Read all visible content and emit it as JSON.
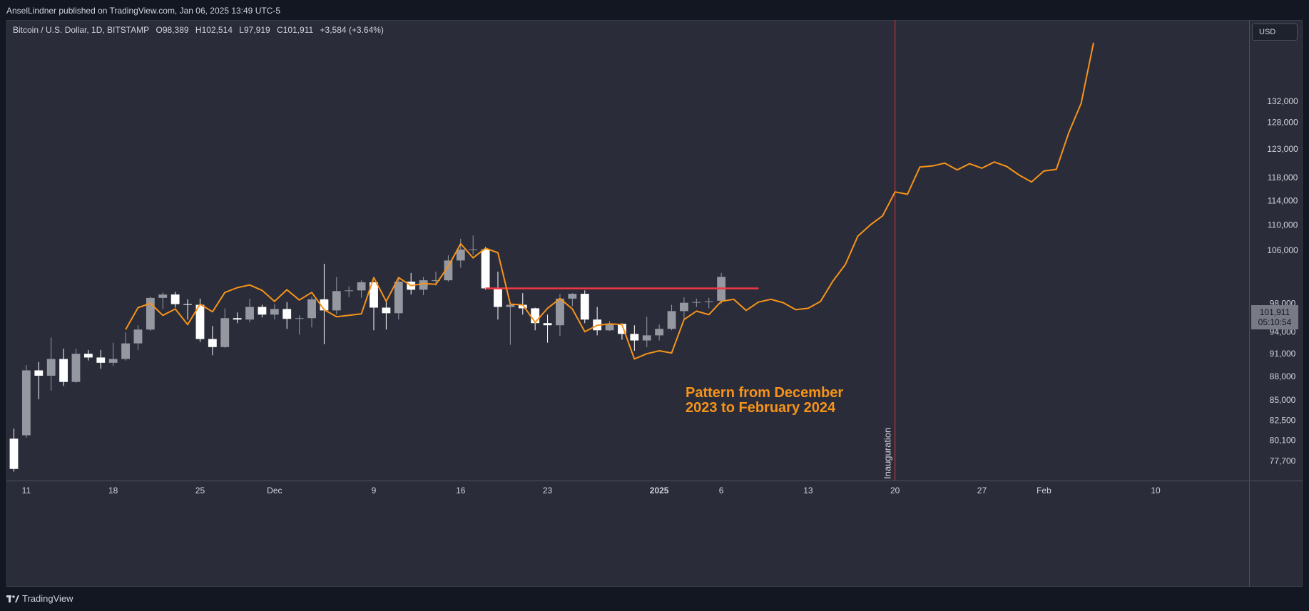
{
  "header": {
    "published": "AnselLindner published on TradingView.com, Jan 06, 2025 13:49 UTC-5"
  },
  "symbol": {
    "name": "Bitcoin / U.S. Dollar, 1D, BITSTAMP",
    "open": "O98,389",
    "high": "H102,514",
    "low": "L97,919",
    "close": "C101,911",
    "change": "+3,584 (+3.64%)"
  },
  "currency": "USD",
  "last_price": {
    "price": "101,911",
    "countdown": "05:10:54"
  },
  "annotation": {
    "line1": "Pattern from December",
    "line2": "2023 to February 2024",
    "event_label": "Inauguration"
  },
  "footer": {
    "brand": "TradingView"
  },
  "colors": {
    "background": "#2a2d39",
    "candle_up": "#9598a1",
    "candle_down": "#ffffff",
    "projection": "#f7931a",
    "resistance": "#f23645",
    "event_line": "#f23645"
  },
  "chart_data": {
    "type": "candlestick",
    "y_scale": "log",
    "ylim": [
      75500,
      146000
    ],
    "y_ticks": [
      77700,
      80100,
      82500,
      85000,
      88000,
      91000,
      94000,
      98000,
      106000,
      110000,
      114000,
      118000,
      123000,
      128000,
      132000
    ],
    "y_tick_labels": [
      "77,700",
      "80,100",
      "82,500",
      "85,000",
      "88,000",
      "91,000",
      "94,000",
      "98,000",
      "106,000",
      "110,000",
      "114,000",
      "118,000",
      "123,000",
      "128,000",
      "132,000"
    ],
    "x_ticks": [
      {
        "label": "11",
        "date": "2024-11-11"
      },
      {
        "label": "18",
        "date": "2024-11-18"
      },
      {
        "label": "25",
        "date": "2024-11-25"
      },
      {
        "label": "Dec",
        "date": "2024-12-01"
      },
      {
        "label": "9",
        "date": "2024-12-09"
      },
      {
        "label": "16",
        "date": "2024-12-16"
      },
      {
        "label": "23",
        "date": "2024-12-23"
      },
      {
        "label": "2025",
        "date": "2025-01-01",
        "bold": true
      },
      {
        "label": "6",
        "date": "2025-01-06"
      },
      {
        "label": "13",
        "date": "2025-01-13"
      },
      {
        "label": "20",
        "date": "2025-01-20"
      },
      {
        "label": "27",
        "date": "2025-01-27"
      },
      {
        "label": "Feb",
        "date": "2025-02-01"
      },
      {
        "label": "10",
        "date": "2025-02-10"
      }
    ],
    "x_range": [
      "2024-11-10",
      "2025-02-15"
    ],
    "candles": [
      {
        "date": "2024-11-10",
        "o": 80300,
        "h": 81500,
        "l": 76500,
        "c": 76800
      },
      {
        "date": "2024-11-11",
        "o": 80700,
        "h": 89500,
        "l": 80400,
        "c": 88800
      },
      {
        "date": "2024-11-12",
        "o": 88800,
        "h": 89900,
        "l": 85100,
        "c": 88100
      },
      {
        "date": "2024-11-13",
        "o": 88100,
        "h": 93200,
        "l": 86200,
        "c": 90300
      },
      {
        "date": "2024-11-14",
        "o": 90300,
        "h": 91700,
        "l": 86800,
        "c": 87300
      },
      {
        "date": "2024-11-15",
        "o": 87300,
        "h": 91700,
        "l": 87200,
        "c": 91000
      },
      {
        "date": "2024-11-16",
        "o": 91000,
        "h": 91500,
        "l": 90100,
        "c": 90500
      },
      {
        "date": "2024-11-17",
        "o": 90500,
        "h": 91500,
        "l": 89000,
        "c": 89800
      },
      {
        "date": "2024-11-18",
        "o": 89800,
        "h": 92500,
        "l": 89400,
        "c": 90300
      },
      {
        "date": "2024-11-19",
        "o": 90300,
        "h": 93900,
        "l": 90100,
        "c": 92400
      },
      {
        "date": "2024-11-20",
        "o": 92400,
        "h": 94900,
        "l": 91500,
        "c": 94300
      },
      {
        "date": "2024-11-21",
        "o": 94300,
        "h": 99000,
        "l": 94100,
        "c": 98800
      },
      {
        "date": "2024-11-22",
        "o": 98800,
        "h": 99600,
        "l": 97200,
        "c": 99300
      },
      {
        "date": "2024-11-23",
        "o": 99300,
        "h": 99700,
        "l": 97400,
        "c": 97900
      },
      {
        "date": "2024-11-24",
        "o": 97900,
        "h": 98600,
        "l": 95700,
        "c": 97800
      },
      {
        "date": "2024-11-25",
        "o": 97800,
        "h": 98700,
        "l": 92600,
        "c": 93000
      },
      {
        "date": "2024-11-26",
        "o": 93000,
        "h": 94800,
        "l": 90800,
        "c": 91900
      },
      {
        "date": "2024-11-27",
        "o": 91900,
        "h": 97300,
        "l": 91800,
        "c": 95900
      },
      {
        "date": "2024-11-28",
        "o": 95900,
        "h": 96700,
        "l": 95200,
        "c": 95700
      },
      {
        "date": "2024-11-29",
        "o": 95700,
        "h": 98700,
        "l": 95300,
        "c": 97500
      },
      {
        "date": "2024-11-30",
        "o": 97500,
        "h": 97800,
        "l": 96000,
        "c": 96400
      },
      {
        "date": "2024-12-01",
        "o": 96400,
        "h": 97900,
        "l": 95700,
        "c": 97200
      },
      {
        "date": "2024-12-02",
        "o": 97200,
        "h": 98200,
        "l": 94400,
        "c": 95800
      },
      {
        "date": "2024-12-03",
        "o": 95800,
        "h": 96300,
        "l": 93600,
        "c": 95900
      },
      {
        "date": "2024-12-04",
        "o": 95900,
        "h": 99000,
        "l": 94600,
        "c": 98600
      },
      {
        "date": "2024-12-05",
        "o": 98600,
        "h": 103900,
        "l": 92300,
        "c": 97000
      },
      {
        "date": "2024-12-06",
        "o": 97000,
        "h": 101900,
        "l": 96400,
        "c": 99800
      },
      {
        "date": "2024-12-07",
        "o": 99800,
        "h": 100500,
        "l": 98900,
        "c": 99900
      },
      {
        "date": "2024-12-08",
        "o": 99900,
        "h": 101400,
        "l": 98800,
        "c": 101100
      },
      {
        "date": "2024-12-09",
        "o": 101100,
        "h": 101200,
        "l": 94200,
        "c": 97400
      },
      {
        "date": "2024-12-10",
        "o": 97400,
        "h": 98300,
        "l": 94300,
        "c": 96600
      },
      {
        "date": "2024-12-11",
        "o": 96600,
        "h": 101900,
        "l": 95700,
        "c": 101200
      },
      {
        "date": "2024-12-12",
        "o": 101200,
        "h": 102500,
        "l": 99300,
        "c": 100000
      },
      {
        "date": "2024-12-13",
        "o": 100000,
        "h": 101900,
        "l": 99200,
        "c": 101400
      },
      {
        "date": "2024-12-14",
        "o": 101400,
        "h": 102700,
        "l": 100600,
        "c": 101400
      },
      {
        "date": "2024-12-15",
        "o": 101400,
        "h": 105200,
        "l": 101200,
        "c": 104400
      },
      {
        "date": "2024-12-16",
        "o": 104400,
        "h": 107800,
        "l": 103300,
        "c": 106100
      },
      {
        "date": "2024-12-17",
        "o": 106100,
        "h": 108300,
        "l": 105300,
        "c": 106100
      },
      {
        "date": "2024-12-18",
        "o": 106100,
        "h": 106500,
        "l": 100000,
        "c": 100200
      },
      {
        "date": "2024-12-19",
        "o": 100200,
        "h": 102700,
        "l": 95700,
        "c": 97500
      },
      {
        "date": "2024-12-20",
        "o": 97500,
        "h": 98100,
        "l": 92200,
        "c": 97800
      },
      {
        "date": "2024-12-21",
        "o": 97800,
        "h": 99500,
        "l": 96400,
        "c": 97300
      },
      {
        "date": "2024-12-22",
        "o": 97300,
        "h": 97400,
        "l": 94200,
        "c": 95200
      },
      {
        "date": "2024-12-23",
        "o": 95200,
        "h": 96400,
        "l": 92500,
        "c": 94900
      },
      {
        "date": "2024-12-24",
        "o": 94900,
        "h": 99400,
        "l": 93400,
        "c": 98700
      },
      {
        "date": "2024-12-25",
        "o": 98700,
        "h": 99500,
        "l": 97600,
        "c": 99400
      },
      {
        "date": "2024-12-26",
        "o": 99400,
        "h": 99900,
        "l": 95200,
        "c": 95700
      },
      {
        "date": "2024-12-27",
        "o": 95700,
        "h": 97500,
        "l": 93500,
        "c": 94200
      },
      {
        "date": "2024-12-28",
        "o": 94200,
        "h": 95500,
        "l": 94100,
        "c": 95100
      },
      {
        "date": "2024-12-29",
        "o": 95100,
        "h": 95200,
        "l": 92900,
        "c": 93700
      },
      {
        "date": "2024-12-30",
        "o": 93700,
        "h": 94900,
        "l": 91400,
        "c": 92800
      },
      {
        "date": "2024-12-31",
        "o": 92800,
        "h": 96100,
        "l": 91900,
        "c": 93500
      },
      {
        "date": "2025-01-01",
        "o": 93500,
        "h": 95000,
        "l": 92800,
        "c": 94400
      },
      {
        "date": "2025-01-02",
        "o": 94400,
        "h": 97800,
        "l": 94200,
        "c": 96900
      },
      {
        "date": "2025-01-03",
        "o": 96900,
        "h": 98900,
        "l": 95800,
        "c": 98100
      },
      {
        "date": "2025-01-04",
        "o": 98100,
        "h": 98700,
        "l": 97500,
        "c": 98200
      },
      {
        "date": "2025-01-05",
        "o": 98200,
        "h": 98800,
        "l": 97300,
        "c": 98300
      },
      {
        "date": "2025-01-06",
        "o": 98389,
        "h": 102514,
        "l": 97919,
        "c": 101911
      }
    ],
    "projection": [
      {
        "date": "2024-11-19",
        "v": 94300
      },
      {
        "date": "2024-11-20",
        "v": 97400
      },
      {
        "date": "2024-11-21",
        "v": 98000
      },
      {
        "date": "2024-11-22",
        "v": 96300
      },
      {
        "date": "2024-11-23",
        "v": 97200
      },
      {
        "date": "2024-11-24",
        "v": 95000
      },
      {
        "date": "2024-11-25",
        "v": 97900
      },
      {
        "date": "2024-11-26",
        "v": 96800
      },
      {
        "date": "2024-11-27",
        "v": 99600
      },
      {
        "date": "2024-11-28",
        "v": 100300
      },
      {
        "date": "2024-11-29",
        "v": 100700
      },
      {
        "date": "2024-11-30",
        "v": 99900
      },
      {
        "date": "2024-12-01",
        "v": 98300
      },
      {
        "date": "2024-12-02",
        "v": 100000
      },
      {
        "date": "2024-12-03",
        "v": 98500
      },
      {
        "date": "2024-12-04",
        "v": 99600
      },
      {
        "date": "2024-12-05",
        "v": 97100
      },
      {
        "date": "2024-12-06",
        "v": 96100
      },
      {
        "date": "2024-12-07",
        "v": 96300
      },
      {
        "date": "2024-12-08",
        "v": 96500
      },
      {
        "date": "2024-12-09",
        "v": 101800
      },
      {
        "date": "2024-12-10",
        "v": 98300
      },
      {
        "date": "2024-12-11",
        "v": 101800
      },
      {
        "date": "2024-12-12",
        "v": 100600
      },
      {
        "date": "2024-12-13",
        "v": 100900
      },
      {
        "date": "2024-12-14",
        "v": 100800
      },
      {
        "date": "2024-12-15",
        "v": 103500
      },
      {
        "date": "2024-12-16",
        "v": 107000
      },
      {
        "date": "2024-12-17",
        "v": 104800
      },
      {
        "date": "2024-12-18",
        "v": 106300
      },
      {
        "date": "2024-12-19",
        "v": 105600
      },
      {
        "date": "2024-12-20",
        "v": 97900
      },
      {
        "date": "2024-12-21",
        "v": 97800
      },
      {
        "date": "2024-12-22",
        "v": 95300
      },
      {
        "date": "2024-12-23",
        "v": 97300
      },
      {
        "date": "2024-12-24",
        "v": 98700
      },
      {
        "date": "2024-12-25",
        "v": 97200
      },
      {
        "date": "2024-12-26",
        "v": 94000
      },
      {
        "date": "2024-12-27",
        "v": 94900
      },
      {
        "date": "2024-12-28",
        "v": 95100
      },
      {
        "date": "2024-12-29",
        "v": 95000
      },
      {
        "date": "2024-12-30",
        "v": 90300
      },
      {
        "date": "2024-12-31",
        "v": 91000
      },
      {
        "date": "2025-01-01",
        "v": 91400
      },
      {
        "date": "2025-01-02",
        "v": 91100
      },
      {
        "date": "2025-01-03",
        "v": 95700
      },
      {
        "date": "2025-01-04",
        "v": 96900
      },
      {
        "date": "2025-01-05",
        "v": 96400
      },
      {
        "date": "2025-01-06",
        "v": 98300
      },
      {
        "date": "2025-01-07",
        "v": 98600
      },
      {
        "date": "2025-01-08",
        "v": 97000
      },
      {
        "date": "2025-01-09",
        "v": 98200
      },
      {
        "date": "2025-01-10",
        "v": 98600
      },
      {
        "date": "2025-01-11",
        "v": 98100
      },
      {
        "date": "2025-01-12",
        "v": 97100
      },
      {
        "date": "2025-01-13",
        "v": 97300
      },
      {
        "date": "2025-01-14",
        "v": 98300
      },
      {
        "date": "2025-01-15",
        "v": 101300
      },
      {
        "date": "2025-01-16",
        "v": 103800
      },
      {
        "date": "2025-01-17",
        "v": 108200
      },
      {
        "date": "2025-01-18",
        "v": 110000
      },
      {
        "date": "2025-01-19",
        "v": 111500
      },
      {
        "date": "2025-01-20",
        "v": 115500
      },
      {
        "date": "2025-01-21",
        "v": 115100
      },
      {
        "date": "2025-01-22",
        "v": 119800
      },
      {
        "date": "2025-01-23",
        "v": 120000
      },
      {
        "date": "2025-01-24",
        "v": 120500
      },
      {
        "date": "2025-01-25",
        "v": 119300
      },
      {
        "date": "2025-01-26",
        "v": 120400
      },
      {
        "date": "2025-01-27",
        "v": 119600
      },
      {
        "date": "2025-01-28",
        "v": 120700
      },
      {
        "date": "2025-01-29",
        "v": 119900
      },
      {
        "date": "2025-01-30",
        "v": 118400
      },
      {
        "date": "2025-01-31",
        "v": 117200
      },
      {
        "date": "2025-02-01",
        "v": 119100
      },
      {
        "date": "2025-02-02",
        "v": 119400
      },
      {
        "date": "2025-02-03",
        "v": 126000
      },
      {
        "date": "2025-02-04",
        "v": 131600
      },
      {
        "date": "2025-02-05",
        "v": 143900
      }
    ],
    "resistance": {
      "price": 100200,
      "from": "2024-12-18",
      "to": "2025-01-09"
    },
    "event": {
      "date": "2025-01-20",
      "label": "Inauguration"
    }
  }
}
